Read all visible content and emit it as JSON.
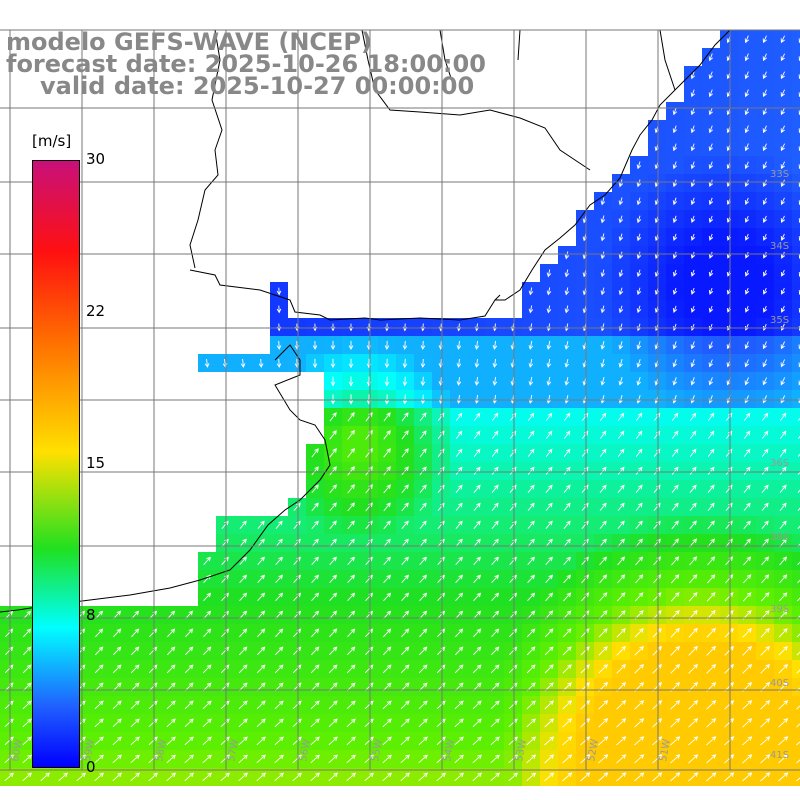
{
  "title": {
    "line1": "modelo GEFS-WAVE (NCEP)",
    "line2": "forecast date: 2025-10-26 18:00:00",
    "line3": "valid date: 2025-10-27 00:00:00"
  },
  "colorbar": {
    "unit": "[m/s]",
    "ticks": [
      "30",
      "22",
      "15",
      "8",
      "0"
    ],
    "colors": [
      "#c8107a",
      "#ff1010",
      "#ff7000",
      "#ffe000",
      "#20e020",
      "#00ffff",
      "#2060ff",
      "#0000ff"
    ]
  },
  "grid_labels": {
    "lat": [
      "33S",
      "34S",
      "35S",
      "36S",
      "38S",
      "39S",
      "40S",
      "41S"
    ],
    "lon": [
      "60W",
      "59W",
      "58W",
      "57W",
      "56W",
      "55W",
      "54W",
      "53W",
      "52W",
      "51W"
    ]
  },
  "field": {
    "variable": "wind speed",
    "units": "m/s",
    "range": [
      0,
      30
    ]
  }
}
